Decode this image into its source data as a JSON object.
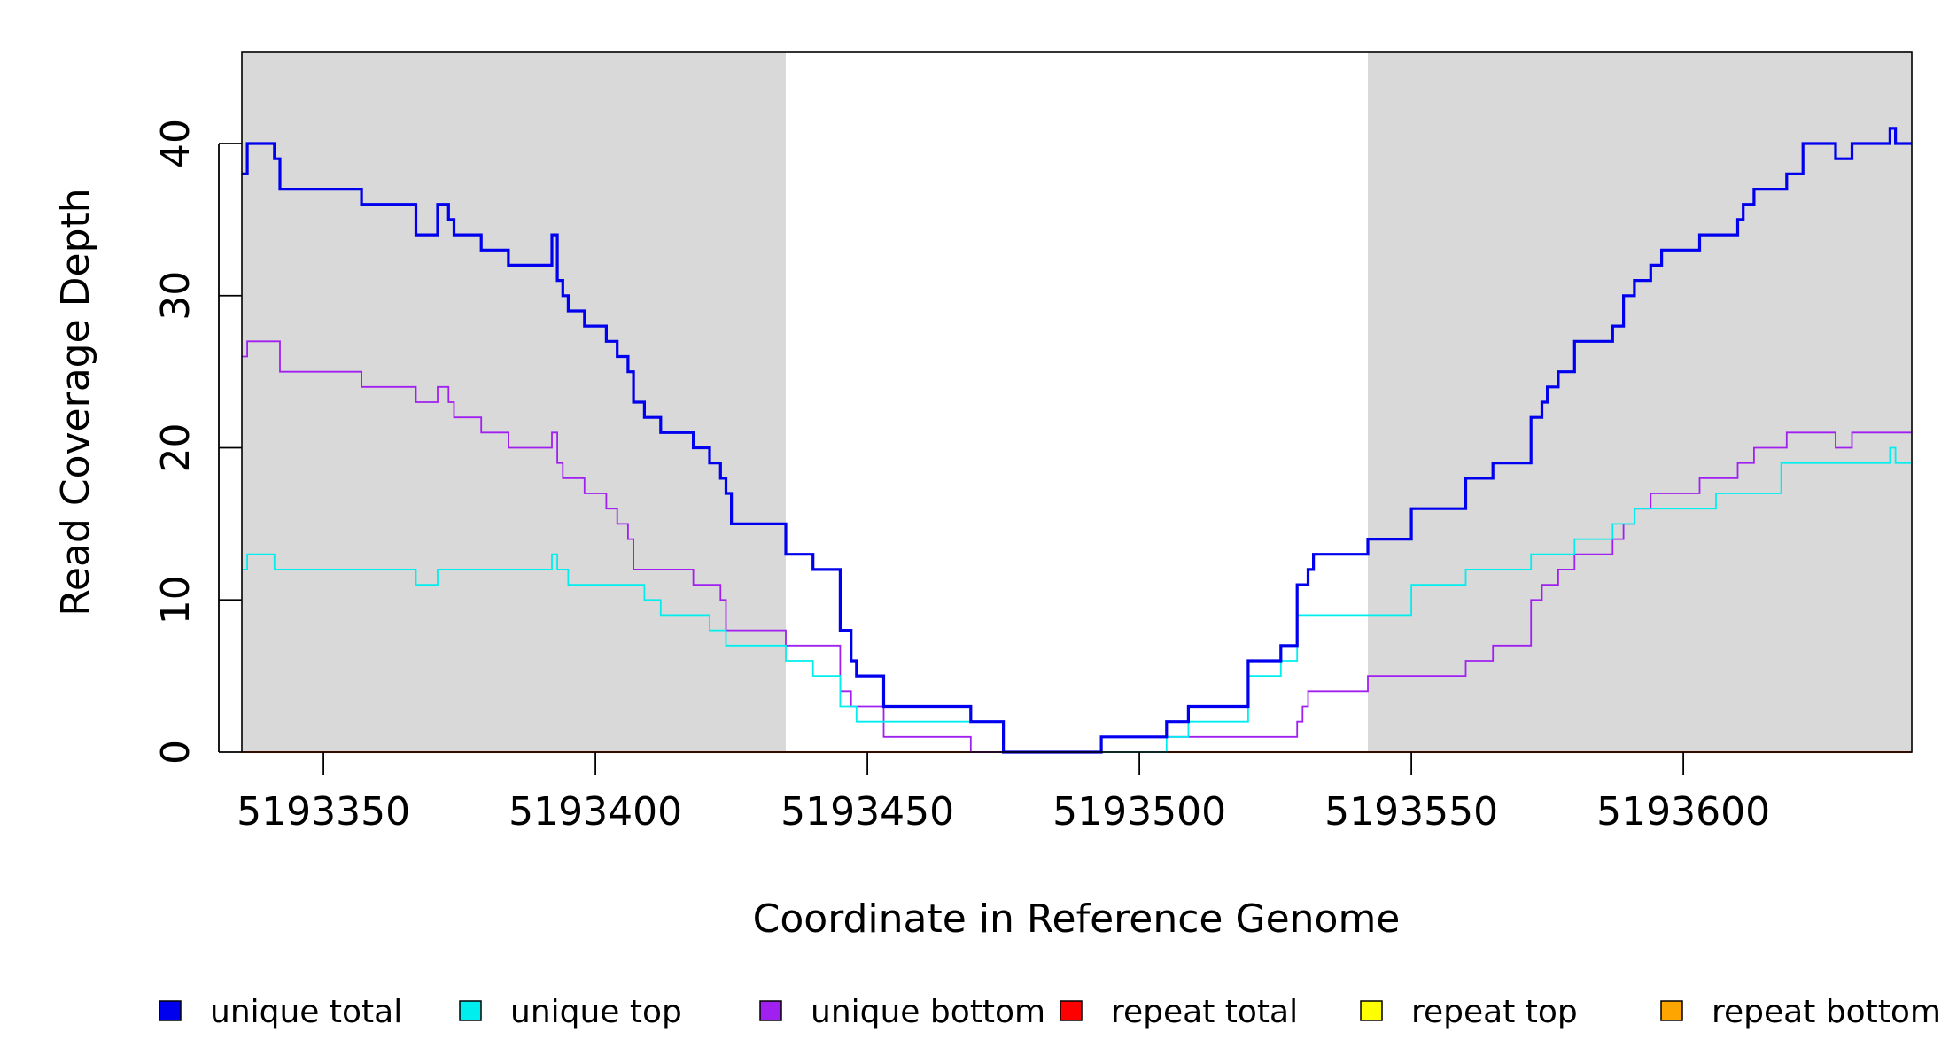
{
  "chart_data": {
    "type": "line",
    "step": true,
    "title": "",
    "xlabel": "Coordinate in Reference Genome",
    "ylabel": "Read Coverage Depth",
    "xlim": [
      5193335,
      5193642
    ],
    "ylim": [
      0,
      46
    ],
    "x_ticks": [
      5193350,
      5193400,
      5193450,
      5193500,
      5193550,
      5193600
    ],
    "x_tick_labels": [
      "5193350",
      "5193400",
      "5193450",
      "5193500",
      "5193550",
      "5193600"
    ],
    "y_ticks": [
      0,
      10,
      20,
      30,
      40
    ],
    "y_tick_labels": [
      "0",
      "10",
      "20",
      "30",
      "40"
    ],
    "shaded_regions": [
      [
        5193335,
        5193435
      ],
      [
        5193542,
        5193642
      ]
    ],
    "shade_color": "#d9d9d9",
    "legend_position": "bottom",
    "series": [
      {
        "name": "unique total",
        "color": "#0000ee",
        "bold": true,
        "points": [
          [
            5193335,
            38
          ],
          [
            5193336,
            40
          ],
          [
            5193341,
            39
          ],
          [
            5193342,
            37
          ],
          [
            5193357,
            36
          ],
          [
            5193367,
            34
          ],
          [
            5193371,
            36
          ],
          [
            5193373,
            35
          ],
          [
            5193374,
            34
          ],
          [
            5193379,
            33
          ],
          [
            5193384,
            32
          ],
          [
            5193392,
            34
          ],
          [
            5193393,
            31
          ],
          [
            5193394,
            30
          ],
          [
            5193395,
            29
          ],
          [
            5193398,
            28
          ],
          [
            5193402,
            27
          ],
          [
            5193404,
            26
          ],
          [
            5193406,
            25
          ],
          [
            5193407,
            23
          ],
          [
            5193409,
            22
          ],
          [
            5193412,
            21
          ],
          [
            5193418,
            20
          ],
          [
            5193421,
            19
          ],
          [
            5193423,
            18
          ],
          [
            5193424,
            17
          ],
          [
            5193425,
            15
          ],
          [
            5193435,
            13
          ],
          [
            5193440,
            12
          ],
          [
            5193445,
            8
          ],
          [
            5193447,
            6
          ],
          [
            5193448,
            5
          ],
          [
            5193453,
            3
          ],
          [
            5193469,
            2
          ],
          [
            5193475,
            0
          ],
          [
            5193493,
            1
          ],
          [
            5193505,
            2
          ],
          [
            5193509,
            3
          ],
          [
            5193520,
            6
          ],
          [
            5193526,
            7
          ],
          [
            5193529,
            11
          ],
          [
            5193531,
            12
          ],
          [
            5193532,
            13
          ],
          [
            5193542,
            14
          ],
          [
            5193550,
            16
          ],
          [
            5193560,
            18
          ],
          [
            5193565,
            19
          ],
          [
            5193572,
            22
          ],
          [
            5193574,
            23
          ],
          [
            5193575,
            24
          ],
          [
            5193577,
            25
          ],
          [
            5193580,
            27
          ],
          [
            5193587,
            28
          ],
          [
            5193589,
            30
          ],
          [
            5193591,
            31
          ],
          [
            5193594,
            32
          ],
          [
            5193596,
            33
          ],
          [
            5193603,
            34
          ],
          [
            5193610,
            35
          ],
          [
            5193611,
            36
          ],
          [
            5193613,
            37
          ],
          [
            5193619,
            38
          ],
          [
            5193622,
            40
          ],
          [
            5193628,
            39
          ],
          [
            5193631,
            40
          ],
          [
            5193638,
            41
          ],
          [
            5193639,
            40
          ],
          [
            5193642,
            40
          ]
        ]
      },
      {
        "name": "unique top",
        "color": "#00eeee",
        "bold": false,
        "points": [
          [
            5193335,
            12
          ],
          [
            5193336,
            13
          ],
          [
            5193341,
            12
          ],
          [
            5193367,
            11
          ],
          [
            5193371,
            12
          ],
          [
            5193392,
            13
          ],
          [
            5193393,
            12
          ],
          [
            5193395,
            11
          ],
          [
            5193409,
            10
          ],
          [
            5193412,
            9
          ],
          [
            5193421,
            8
          ],
          [
            5193424,
            7
          ],
          [
            5193435,
            6
          ],
          [
            5193440,
            5
          ],
          [
            5193445,
            3
          ],
          [
            5193448,
            2
          ],
          [
            5193469,
            2
          ],
          [
            5193475,
            0
          ],
          [
            5193505,
            1
          ],
          [
            5193509,
            2
          ],
          [
            5193520,
            5
          ],
          [
            5193526,
            6
          ],
          [
            5193529,
            9
          ],
          [
            5193542,
            9
          ],
          [
            5193550,
            11
          ],
          [
            5193560,
            12
          ],
          [
            5193572,
            13
          ],
          [
            5193580,
            14
          ],
          [
            5193587,
            15
          ],
          [
            5193591,
            16
          ],
          [
            5193606,
            17
          ],
          [
            5193618,
            19
          ],
          [
            5193638,
            20
          ],
          [
            5193639,
            19
          ],
          [
            5193642,
            19
          ]
        ]
      },
      {
        "name": "unique bottom",
        "color": "#a020f0",
        "bold": false,
        "points": [
          [
            5193335,
            26
          ],
          [
            5193336,
            27
          ],
          [
            5193342,
            25
          ],
          [
            5193357,
            24
          ],
          [
            5193367,
            23
          ],
          [
            5193371,
            24
          ],
          [
            5193373,
            23
          ],
          [
            5193374,
            22
          ],
          [
            5193379,
            21
          ],
          [
            5193384,
            20
          ],
          [
            5193392,
            21
          ],
          [
            5193393,
            19
          ],
          [
            5193394,
            18
          ],
          [
            5193398,
            17
          ],
          [
            5193402,
            16
          ],
          [
            5193404,
            15
          ],
          [
            5193406,
            14
          ],
          [
            5193407,
            12
          ],
          [
            5193418,
            11
          ],
          [
            5193423,
            10
          ],
          [
            5193424,
            8
          ],
          [
            5193435,
            7
          ],
          [
            5193445,
            4
          ],
          [
            5193447,
            3
          ],
          [
            5193453,
            1
          ],
          [
            5193469,
            0
          ],
          [
            5193493,
            1
          ],
          [
            5193529,
            2
          ],
          [
            5193530,
            3
          ],
          [
            5193531,
            4
          ],
          [
            5193542,
            5
          ],
          [
            5193560,
            6
          ],
          [
            5193565,
            7
          ],
          [
            5193572,
            10
          ],
          [
            5193574,
            11
          ],
          [
            5193577,
            12
          ],
          [
            5193580,
            13
          ],
          [
            5193587,
            14
          ],
          [
            5193589,
            15
          ],
          [
            5193591,
            16
          ],
          [
            5193594,
            17
          ],
          [
            5193603,
            18
          ],
          [
            5193610,
            19
          ],
          [
            5193613,
            20
          ],
          [
            5193619,
            21
          ],
          [
            5193628,
            20
          ],
          [
            5193631,
            21
          ],
          [
            5193642,
            21
          ]
        ]
      },
      {
        "name": "repeat total",
        "color": "#ff0000",
        "bold": false,
        "points": [
          [
            5193335,
            0
          ],
          [
            5193642,
            0
          ]
        ]
      },
      {
        "name": "repeat top",
        "color": "#ffff00",
        "bold": false,
        "points": [
          [
            5193335,
            0
          ],
          [
            5193642,
            0
          ]
        ]
      },
      {
        "name": "repeat bottom",
        "color": "#ffa500",
        "bold": false,
        "points": [
          [
            5193335,
            0
          ],
          [
            5193642,
            0
          ]
        ]
      }
    ]
  }
}
